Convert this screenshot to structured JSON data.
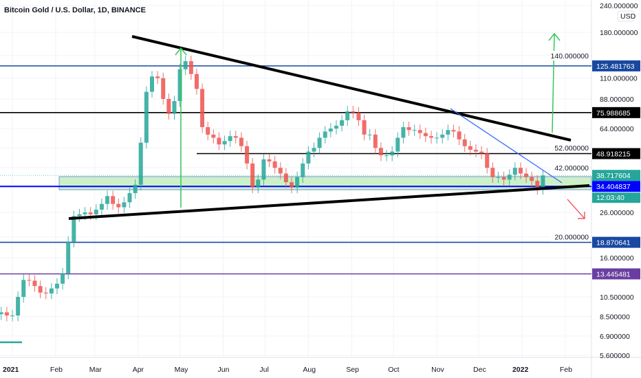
{
  "header": {
    "title": "Bitcoin Gold / U.S. Dollar, 1D, BINANCE",
    "currency_badge": "USD"
  },
  "chart_data": {
    "type": "candlestick",
    "title": "Bitcoin Gold / U.S. Dollar, 1D, BINANCE",
    "y_scale": "log",
    "ylim": [
      5.3,
      245
    ],
    "grid": true,
    "y_ticks": [
      "240.000000",
      "180.000000",
      "140.000000",
      "110.000000",
      "88.000000",
      "64.000000",
      "52.000000",
      "42.000000",
      "26.000000",
      "20.000000",
      "16.000000",
      "10.500000",
      "8.500000",
      "6.900000",
      "5.600000"
    ],
    "x_ticks": [
      {
        "label": "2021",
        "date": "2021-01-01",
        "bold": true
      },
      {
        "label": "Feb",
        "date": "2021-02-01"
      },
      {
        "label": "Mar",
        "date": "2021-03-01"
      },
      {
        "label": "Apr",
        "date": "2021-04-01"
      },
      {
        "label": "May",
        "date": "2021-05-01"
      },
      {
        "label": "Jun",
        "date": "2021-06-01"
      },
      {
        "label": "Jul",
        "date": "2021-07-01"
      },
      {
        "label": "Aug",
        "date": "2021-08-01"
      },
      {
        "label": "Sep",
        "date": "2021-09-01"
      },
      {
        "label": "Oct",
        "date": "2021-10-01"
      },
      {
        "label": "Nov",
        "date": "2021-11-01"
      },
      {
        "label": "Dec",
        "date": "2021-12-01"
      },
      {
        "label": "2022",
        "date": "2022-01-01",
        "bold": true
      },
      {
        "label": "Feb",
        "date": "2022-02-01"
      }
    ],
    "dates": [
      "2020-12-24",
      "2020-12-28",
      "2021-01-01",
      "2021-01-05",
      "2021-01-09",
      "2021-01-13",
      "2021-01-17",
      "2021-01-21",
      "2021-01-25",
      "2021-01-29",
      "2021-02-02",
      "2021-02-06",
      "2021-02-10",
      "2021-02-14",
      "2021-02-18",
      "2021-02-22",
      "2021-02-26",
      "2021-03-02",
      "2021-03-06",
      "2021-03-10",
      "2021-03-14",
      "2021-03-18",
      "2021-03-22",
      "2021-03-26",
      "2021-03-30",
      "2021-04-03",
      "2021-04-07",
      "2021-04-11",
      "2021-04-15",
      "2021-04-19",
      "2021-04-23",
      "2021-04-27",
      "2021-05-01",
      "2021-05-05",
      "2021-05-09",
      "2021-05-13",
      "2021-05-17",
      "2021-05-21",
      "2021-05-25",
      "2021-05-29",
      "2021-06-02",
      "2021-06-06",
      "2021-06-10",
      "2021-06-14",
      "2021-06-18",
      "2021-06-22",
      "2021-06-26",
      "2021-06-30",
      "2021-07-04",
      "2021-07-08",
      "2021-07-12",
      "2021-07-16",
      "2021-07-20",
      "2021-07-24",
      "2021-07-28",
      "2021-08-01",
      "2021-08-05",
      "2021-08-09",
      "2021-08-13",
      "2021-08-17",
      "2021-08-21",
      "2021-08-25",
      "2021-08-29",
      "2021-09-02",
      "2021-09-06",
      "2021-09-10",
      "2021-09-14",
      "2021-09-18",
      "2021-09-22",
      "2021-09-26",
      "2021-09-30",
      "2021-10-04",
      "2021-10-08",
      "2021-10-12",
      "2021-10-16",
      "2021-10-20",
      "2021-10-24",
      "2021-10-28",
      "2021-11-01",
      "2021-11-05",
      "2021-11-09",
      "2021-11-13",
      "2021-11-17",
      "2021-11-21",
      "2021-11-25",
      "2021-11-29",
      "2021-12-03",
      "2021-12-07",
      "2021-12-11",
      "2021-12-15",
      "2021-12-19",
      "2021-12-23",
      "2021-12-27",
      "2021-12-31",
      "2022-01-04",
      "2022-01-08",
      "2022-01-12",
      "2022-01-16"
    ],
    "close": [
      8.9,
      8.6,
      8.6,
      10.5,
      12.6,
      12.5,
      11.8,
      11.0,
      10.9,
      11.5,
      12.1,
      13.5,
      19,
      25,
      25.5,
      26,
      25.5,
      26.8,
      28.5,
      31,
      28.5,
      27.5,
      29,
      32,
      35,
      55,
      95,
      112,
      110,
      88,
      75,
      86,
      121,
      132,
      115,
      98,
      65,
      60,
      58,
      54,
      56,
      59,
      58,
      53,
      44,
      34,
      37,
      46,
      45,
      42,
      39.5,
      36,
      34,
      38,
      44,
      50,
      52,
      58,
      62,
      64,
      66,
      70,
      77,
      76,
      70,
      60,
      60,
      52,
      48,
      48,
      50,
      58,
      65,
      63,
      63,
      61,
      59,
      58,
      58,
      60,
      63,
      62,
      57,
      53,
      51,
      50,
      49,
      42,
      38,
      38,
      37,
      39,
      42,
      39.5,
      38,
      36.5,
      33.5,
      38.7
    ],
    "horizontal_levels": [
      {
        "label": "125.481763",
        "value": 125.481763,
        "color": "#1848a0"
      },
      {
        "label": "75.988685",
        "value": 75.988685,
        "color": "#000000"
      },
      {
        "label": "48.918215",
        "value": 48.918215,
        "color": "#000000"
      },
      {
        "label": "34.404837",
        "value": 34.404837,
        "color": "#0000ff"
      },
      {
        "label": "18.870641",
        "value": 18.870641,
        "color": "#1848a0"
      },
      {
        "label": "13.445481",
        "value": 13.445481,
        "color": "#6a3ea1"
      }
    ],
    "last_price": {
      "label": "38.717604",
      "value": 38.717604,
      "countdown": "12:03:40",
      "color": "#26a69a"
    },
    "colors": {
      "up": "#26a69a",
      "down": "#ef5350",
      "zone_fill": "#c8f0c0",
      "zone_border": "#5b8bd8",
      "arrow_up": "#34c759",
      "arrow_down": "#f23645"
    }
  }
}
